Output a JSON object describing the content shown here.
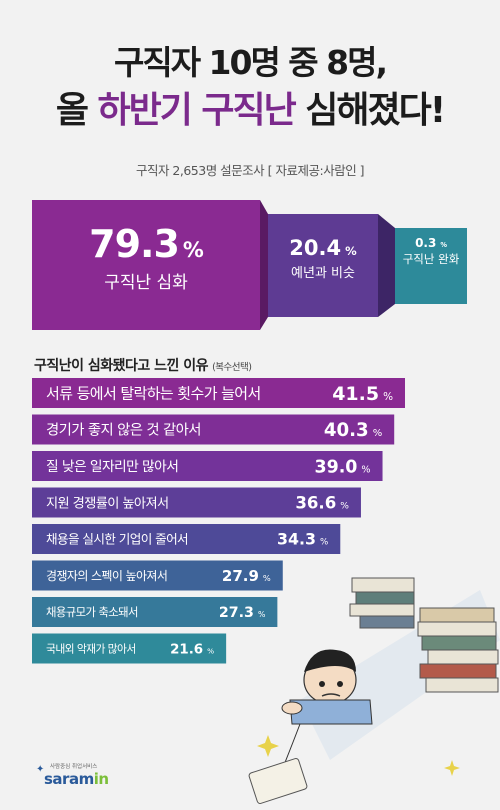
{
  "header": {
    "title_line1": "구직자 10명 중 8명,",
    "title_line2_pre": "올 ",
    "title_line2_highlight": "하반기 구직난",
    "title_line2_post": " 심해졌다!",
    "subtitle": "구직자 2,653명 설문조사 [ 자료제공:사람인 ]"
  },
  "summary": [
    {
      "value": "79.3",
      "unit": "%",
      "label": "구직난 심화",
      "color": "#8a2a92"
    },
    {
      "value": "20.4",
      "unit": "%",
      "label": "예년과 비슷",
      "color": "#5e3b93"
    },
    {
      "value": "0.3",
      "unit": "%",
      "label": "구직난 완화",
      "color": "#2d8a9a"
    }
  ],
  "reasons": {
    "title": "구직난이 심화됐다고 느낀 이유",
    "note": "(복수선택)"
  },
  "chart_data": {
    "type": "bar",
    "orientation": "horizontal",
    "unit": "%",
    "categories": [
      "서류 등에서 탈락하는 횟수가 늘어서",
      "경기가 좋지 않은 것 같아서",
      "질 낮은 일자리만 많아서",
      "지원 경쟁률이 높아져서",
      "채용을 실시한 기업이 줄어서",
      "경쟁자의 스펙이 높아져서",
      "채용규모가 축소돼서",
      "국내외 악재가 많아서"
    ],
    "values": [
      41.5,
      40.3,
      39.0,
      36.6,
      34.3,
      27.9,
      27.3,
      21.6
    ],
    "value_labels": [
      "41.5",
      "40.3",
      "39.0",
      "36.6",
      "34.3",
      "27.9",
      "27.3",
      "21.6"
    ],
    "colors": [
      "#8a2a92",
      "#7f2e96",
      "#73339a",
      "#5d3e98",
      "#4e4a98",
      "#3e6398",
      "#36799a",
      "#2f8a9a"
    ]
  },
  "logo": {
    "tagline": "사람중심 취업서비스",
    "brand": "saram",
    "brand_suffix": "in"
  }
}
